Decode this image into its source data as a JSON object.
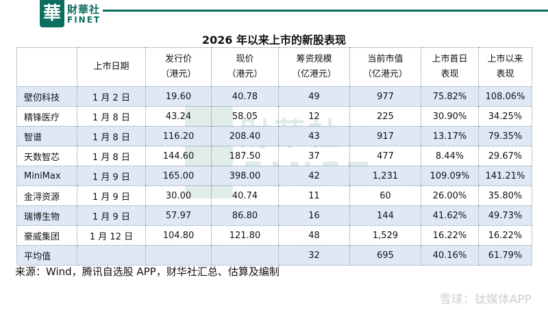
{
  "brand": {
    "name_cn": "財華社",
    "name_en": "FINET",
    "logo_glyph": "華",
    "color": "#0b6e5e"
  },
  "title": "2026 年以来上市的新股表现",
  "headers": [
    {
      "line1": "",
      "line2": ""
    },
    {
      "line1": "上市日期",
      "line2": ""
    },
    {
      "line1": "发行价",
      "line2": "（港元）"
    },
    {
      "line1": "现价",
      "line2": "（港元）"
    },
    {
      "line1": "筹资规模",
      "line2": "（亿港元）"
    },
    {
      "line1": "当前市值",
      "line2": "（亿港元）"
    },
    {
      "line1": "上市首日",
      "line2": "表现"
    },
    {
      "line1": "上市以来",
      "line2": "表现"
    }
  ],
  "rows": [
    {
      "name": "壁仞科技",
      "date": "1 月 2 日",
      "issue_price": "19.60",
      "current_price": "40.78",
      "raised": "49",
      "market_cap": "977",
      "first_day": "75.82%",
      "since_listing": "108.06%"
    },
    {
      "name": "精锋医疗",
      "date": "1 月 8 日",
      "issue_price": "43.24",
      "current_price": "58.05",
      "raised": "12",
      "market_cap": "225",
      "first_day": "30.90%",
      "since_listing": "34.25%"
    },
    {
      "name": "智谱",
      "date": "1 月 8 日",
      "issue_price": "116.20",
      "current_price": "208.40",
      "raised": "43",
      "market_cap": "917",
      "first_day": "13.17%",
      "since_listing": "79.35%"
    },
    {
      "name": "天数智芯",
      "date": "1 月 8 日",
      "issue_price": "144.60",
      "current_price": "187.50",
      "raised": "37",
      "market_cap": "477",
      "first_day": "8.44%",
      "since_listing": "29.67%"
    },
    {
      "name": "MiniMax",
      "date": "1 月 9 日",
      "issue_price": "165.00",
      "current_price": "398.00",
      "raised": "42",
      "market_cap": "1,231",
      "first_day": "109.09%",
      "since_listing": "141.21%"
    },
    {
      "name": "金浔资源",
      "date": "1 月 9 日",
      "issue_price": "30.00",
      "current_price": "40.74",
      "raised": "11",
      "market_cap": "60",
      "first_day": "26.00%",
      "since_listing": "35.80%"
    },
    {
      "name": "瑞博生物",
      "date": "1 月 9 日",
      "issue_price": "57.97",
      "current_price": "86.80",
      "raised": "16",
      "market_cap": "144",
      "first_day": "41.62%",
      "since_listing": "49.73%"
    },
    {
      "name": "豪威集团",
      "date": "1 月 12 日",
      "issue_price": "104.80",
      "current_price": "121.80",
      "raised": "48",
      "market_cap": "1,529",
      "first_day": "16.22%",
      "since_listing": "16.22%"
    },
    {
      "name": "平均值",
      "date": "",
      "issue_price": "",
      "current_price": "",
      "raised": "32",
      "market_cap": "695",
      "first_day": "40.16%",
      "since_listing": "61.79%"
    }
  ],
  "source": "来源：Wind，腾讯自选股 APP，财华社汇总、估算及编制",
  "corner_watermark": "雪球：钛媒体APP",
  "row_highlight_color": "#dfe9f6"
}
